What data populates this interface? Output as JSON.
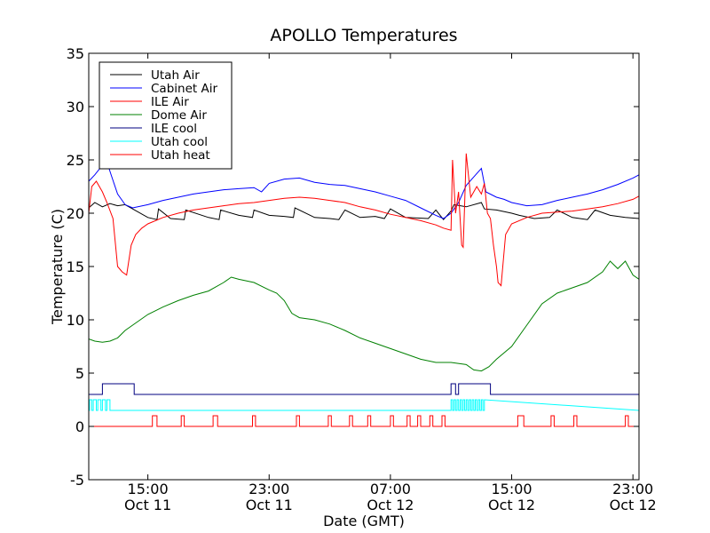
{
  "chart_data": {
    "type": "line",
    "title": "APOLLO Temperatures",
    "xlabel": "Date (GMT)",
    "ylabel": "Temperature (C)",
    "x_unit": "hours since Oct 11 00:00 GMT",
    "xlim": [
      11.1,
      47.4
    ],
    "ylim": [
      -5,
      35
    ],
    "yticks": [
      -5,
      0,
      5,
      10,
      15,
      20,
      25,
      30,
      35
    ],
    "xticks": [
      {
        "value": 15,
        "line1": "15:00",
        "line2": "Oct 11"
      },
      {
        "value": 23,
        "line1": "23:00",
        "line2": "Oct 11"
      },
      {
        "value": 31,
        "line1": "07:00",
        "line2": "Oct 12"
      },
      {
        "value": 39,
        "line1": "15:00",
        "line2": "Oct 12"
      },
      {
        "value": 47,
        "line1": "23:00",
        "line2": "Oct 12"
      }
    ],
    "legend_position": "top-left",
    "series": [
      {
        "name": "Utah Air",
        "color": "#000000",
        "x": [
          11.1,
          11.5,
          12.0,
          12.5,
          13.0,
          13.5,
          14.0,
          15.0,
          15.6,
          15.7,
          16.5,
          17.4,
          17.5,
          19.0,
          19.7,
          19.8,
          21.0,
          21.9,
          22.0,
          23.0,
          24.0,
          24.6,
          24.7,
          26.0,
          27.0,
          27.6,
          28.0,
          29.0,
          30.0,
          30.6,
          31.0,
          32.0,
          33.5,
          34.0,
          34.5,
          35.0,
          35.2,
          36.0,
          37.0,
          37.2,
          38.0,
          39.0,
          39.5,
          40.5,
          41.5,
          42.0,
          43.0,
          44.0,
          44.5,
          45.5,
          46.5,
          47.4
        ],
        "y": [
          20.5,
          21.0,
          20.6,
          20.9,
          20.7,
          20.8,
          20.4,
          19.6,
          19.4,
          20.4,
          19.5,
          19.4,
          20.3,
          19.6,
          19.4,
          20.3,
          19.8,
          19.6,
          20.3,
          19.8,
          19.7,
          19.6,
          20.5,
          19.6,
          19.5,
          19.4,
          20.3,
          19.6,
          19.7,
          19.5,
          20.4,
          19.6,
          19.5,
          20.3,
          19.4,
          20.2,
          20.8,
          20.6,
          21.0,
          20.4,
          20.3,
          20.0,
          19.8,
          19.5,
          19.6,
          20.3,
          19.6,
          19.4,
          20.3,
          19.8,
          19.6,
          19.5
        ]
      },
      {
        "name": "Cabinet Air",
        "color": "#0000ff",
        "x": [
          11.1,
          11.5,
          12.0,
          12.3,
          12.6,
          13.0,
          13.5,
          14.0,
          15.0,
          16.0,
          17.0,
          18.0,
          19.0,
          20.0,
          21.0,
          22.0,
          22.5,
          23.0,
          24.0,
          25.0,
          26.0,
          27.0,
          28.0,
          29.0,
          30.0,
          31.0,
          32.0,
          33.0,
          34.0,
          34.5,
          35.0,
          35.5,
          36.0,
          36.5,
          37.0,
          37.3,
          38.0,
          38.5,
          39.0,
          40.0,
          41.0,
          42.0,
          43.0,
          44.0,
          45.0,
          46.0,
          47.0,
          47.4
        ],
        "y": [
          23.0,
          23.6,
          24.5,
          24.8,
          23.5,
          21.8,
          20.8,
          20.5,
          20.8,
          21.2,
          21.5,
          21.8,
          22.0,
          22.2,
          22.3,
          22.4,
          22.0,
          22.8,
          23.2,
          23.3,
          22.9,
          22.7,
          22.6,
          22.3,
          22.0,
          21.6,
          21.2,
          20.5,
          19.8,
          19.5,
          20.0,
          21.0,
          22.6,
          23.4,
          24.2,
          22.0,
          21.5,
          21.3,
          21.0,
          20.7,
          20.8,
          21.2,
          21.5,
          21.8,
          22.2,
          22.7,
          23.3,
          23.6
        ]
      },
      {
        "name": "ILE Air",
        "color": "#ff0000",
        "x": [
          11.1,
          11.3,
          11.6,
          12.0,
          12.3,
          12.7,
          13.0,
          13.3,
          13.6,
          13.9,
          14.2,
          14.6,
          15.0,
          16.0,
          17.0,
          18.0,
          19.0,
          20.0,
          21.0,
          22.0,
          23.0,
          24.0,
          25.0,
          26.0,
          27.0,
          28.0,
          29.0,
          30.0,
          31.0,
          32.0,
          33.0,
          34.0,
          34.5,
          35.0,
          35.1,
          35.3,
          35.5,
          35.7,
          35.8,
          35.9,
          36.0,
          36.3,
          36.7,
          37.0,
          37.2,
          37.4,
          37.6,
          37.8,
          38.0,
          38.1,
          38.3,
          38.6,
          39.0,
          40.0,
          41.0,
          42.0,
          43.0,
          44.0,
          45.0,
          46.0,
          47.0,
          47.4
        ],
        "y": [
          20.0,
          22.5,
          23.0,
          22.0,
          21.0,
          19.5,
          15.0,
          14.5,
          14.2,
          17.0,
          18.0,
          18.6,
          19.0,
          19.6,
          20.0,
          20.3,
          20.5,
          20.7,
          20.9,
          21.0,
          21.2,
          21.4,
          21.5,
          21.4,
          21.2,
          21.0,
          20.6,
          20.3,
          19.9,
          19.6,
          19.3,
          18.9,
          18.6,
          18.4,
          25.0,
          20.0,
          22.0,
          17.0,
          16.8,
          21.0,
          25.6,
          21.5,
          22.5,
          21.8,
          22.8,
          20.0,
          19.5,
          17.0,
          15.0,
          13.5,
          13.2,
          18.0,
          19.0,
          19.6,
          20.0,
          20.1,
          20.2,
          20.4,
          20.6,
          20.9,
          21.3,
          21.6
        ]
      },
      {
        "name": "Dome Air",
        "color": "#008000",
        "x": [
          11.1,
          11.5,
          12.0,
          12.5,
          13.0,
          13.5,
          14.0,
          15.0,
          16.0,
          17.0,
          18.0,
          19.0,
          20.0,
          20.5,
          21.0,
          22.0,
          23.0,
          23.5,
          24.0,
          24.5,
          25.0,
          26.0,
          27.0,
          28.0,
          29.0,
          30.0,
          31.0,
          32.0,
          33.0,
          34.0,
          35.0,
          36.0,
          36.5,
          37.0,
          37.5,
          38.0,
          39.0,
          40.0,
          41.0,
          42.0,
          43.0,
          44.0,
          45.0,
          45.5,
          46.0,
          46.5,
          47.0,
          47.4
        ],
        "y": [
          8.2,
          8.0,
          7.9,
          8.0,
          8.3,
          9.0,
          9.5,
          10.5,
          11.2,
          11.8,
          12.3,
          12.7,
          13.5,
          14.0,
          13.8,
          13.5,
          12.8,
          12.5,
          11.8,
          10.6,
          10.2,
          10.0,
          9.6,
          9.0,
          8.3,
          7.8,
          7.3,
          6.8,
          6.3,
          6.0,
          6.0,
          5.8,
          5.3,
          5.2,
          5.6,
          6.3,
          7.5,
          9.5,
          11.5,
          12.5,
          13.0,
          13.5,
          14.5,
          15.5,
          14.8,
          15.5,
          14.2,
          13.8
        ]
      },
      {
        "name": "ILE cool",
        "color": "#000080",
        "x": [
          11.1,
          12.0,
          12.0,
          14.1,
          14.1,
          35.0,
          35.0,
          35.3,
          35.3,
          35.5,
          35.5,
          37.6,
          37.6,
          47.4
        ],
        "y": [
          3.0,
          3.0,
          4.0,
          4.0,
          3.0,
          3.0,
          4.0,
          4.0,
          3.0,
          3.0,
          4.0,
          4.0,
          3.0,
          3.0
        ]
      },
      {
        "name": "Utah cool",
        "color": "#00ffff",
        "x": [
          11.1,
          11.15,
          11.15,
          11.3,
          11.3,
          11.4,
          11.4,
          11.6,
          11.6,
          11.7,
          11.7,
          11.9,
          11.9,
          12.0,
          12.0,
          12.2,
          12.2,
          12.3,
          12.3,
          12.5,
          12.5,
          35.0,
          35.0,
          35.1,
          35.1,
          35.2,
          35.2,
          35.3,
          35.3,
          35.4,
          35.4,
          35.5,
          35.5,
          35.6,
          35.6,
          35.7,
          35.7,
          35.8,
          35.8,
          35.9,
          35.9,
          36.0,
          36.0,
          36.1,
          36.1,
          36.2,
          36.2,
          36.3,
          36.3,
          36.4,
          36.4,
          36.5,
          36.5,
          36.6,
          36.6,
          36.7,
          36.7,
          36.8,
          36.8,
          36.9,
          36.9,
          37.0,
          37.0,
          37.1,
          37.1,
          37.2,
          37.2,
          47.4
        ],
        "y": [
          1.5,
          1.5,
          2.5,
          2.5,
          1.5,
          1.5,
          2.5,
          2.5,
          1.5,
          1.5,
          2.5,
          2.5,
          1.5,
          1.5,
          2.5,
          2.5,
          1.5,
          1.5,
          2.5,
          2.5,
          1.5,
          1.5,
          2.5,
          2.5,
          1.5,
          1.5,
          2.5,
          2.5,
          1.5,
          1.5,
          2.5,
          2.5,
          1.5,
          1.5,
          2.5,
          2.5,
          1.5,
          1.5,
          2.5,
          2.5,
          1.5,
          1.5,
          2.5,
          2.5,
          1.5,
          1.5,
          2.5,
          2.5,
          1.5,
          1.5,
          2.5,
          2.5,
          1.5,
          1.5,
          2.5,
          2.5,
          1.5,
          1.5,
          2.5,
          2.5,
          1.5,
          1.5,
          2.5,
          2.5,
          1.5,
          1.5,
          2.5,
          1.5
        ]
      },
      {
        "name": "Utah heat",
        "color": "#ff0000",
        "x": [
          11.1,
          15.3,
          15.3,
          15.6,
          15.6,
          17.2,
          17.2,
          17.4,
          17.4,
          19.3,
          19.3,
          19.6,
          19.6,
          21.9,
          21.9,
          22.1,
          22.1,
          24.8,
          24.8,
          25.0,
          25.0,
          26.9,
          26.9,
          27.1,
          27.1,
          28.3,
          28.3,
          28.5,
          28.5,
          29.5,
          29.5,
          29.7,
          29.7,
          31.0,
          31.0,
          31.2,
          31.2,
          32.1,
          32.1,
          32.3,
          32.3,
          32.8,
          32.8,
          33.0,
          33.0,
          33.6,
          33.6,
          33.8,
          33.8,
          34.4,
          34.4,
          34.6,
          34.6,
          39.4,
          39.4,
          39.8,
          39.8,
          41.6,
          41.6,
          41.8,
          41.8,
          43.1,
          43.1,
          43.3,
          43.3,
          46.5,
          46.5,
          46.7,
          46.7,
          47.4
        ],
        "y": [
          0,
          0,
          1,
          1,
          0,
          0,
          1,
          1,
          0,
          0,
          1,
          1,
          0,
          0,
          1,
          1,
          0,
          0,
          1,
          1,
          0,
          0,
          1,
          1,
          0,
          0,
          1,
          1,
          0,
          0,
          1,
          1,
          0,
          0,
          1,
          1,
          0,
          0,
          1,
          1,
          0,
          0,
          1,
          1,
          0,
          0,
          1,
          1,
          0,
          0,
          1,
          1,
          0,
          0,
          1,
          1,
          0,
          0,
          1,
          1,
          0,
          0,
          1,
          1,
          0,
          0,
          1,
          1,
          0,
          0
        ]
      }
    ]
  }
}
